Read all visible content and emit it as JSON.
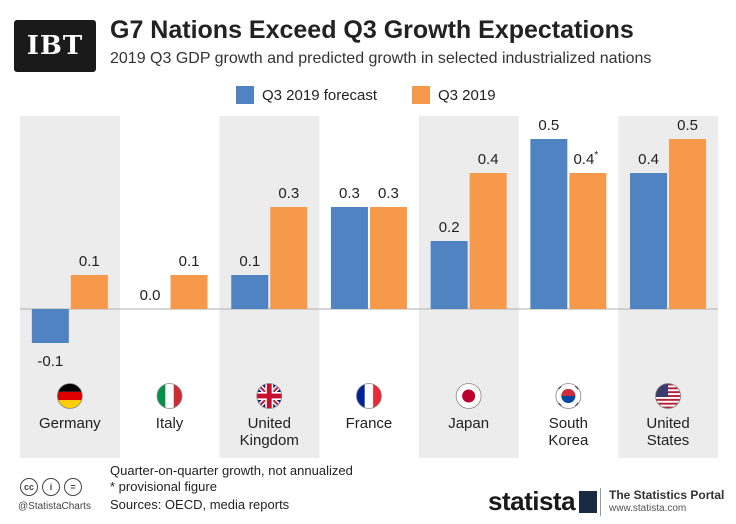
{
  "brand": {
    "logo_text": "IBT"
  },
  "header": {
    "title": "G7 Nations Exceed Q3 Growth Expectations",
    "subtitle": "2019 Q3 GDP growth and predicted growth in selected industrialized nations"
  },
  "legend": {
    "forecast_label": "Q3 2019 forecast",
    "actual_label": "Q3 2019"
  },
  "colors": {
    "forecast": "#5083c1",
    "actual": "#f7994a",
    "band": "#ececec",
    "baseline": "#bdbdbd"
  },
  "chart_data": {
    "type": "bar",
    "title": "G7 Nations Exceed Q3 Growth Expectations",
    "subtitle": "2019 Q3 GDP growth and predicted growth in selected industrialized nations",
    "xlabel": "",
    "ylabel": "",
    "ylim": [
      -0.15,
      0.55
    ],
    "grid": false,
    "legend_position": "top-center",
    "categories": [
      "Germany",
      "Italy",
      "United Kingdom",
      "France",
      "Japan",
      "South Korea",
      "United States"
    ],
    "category_lines": [
      [
        "Germany"
      ],
      [
        "Italy"
      ],
      [
        "United",
        "Kingdom"
      ],
      [
        "France"
      ],
      [
        "Japan"
      ],
      [
        "South",
        "Korea"
      ],
      [
        "United",
        "States"
      ]
    ],
    "flags": [
      "germany-flag",
      "italy-flag",
      "uk-flag",
      "france-flag",
      "japan-flag",
      "south-korea-flag",
      "usa-flag"
    ],
    "series": [
      {
        "name": "Q3 2019 forecast",
        "values": [
          -0.1,
          0.0,
          0.1,
          0.3,
          0.2,
          0.5,
          0.4
        ],
        "labels": [
          "-0.1",
          "0.0",
          "0.1",
          "0.3",
          "0.2",
          "0.5",
          "0.4"
        ]
      },
      {
        "name": "Q3 2019",
        "values": [
          0.1,
          0.1,
          0.3,
          0.3,
          0.4,
          0.4,
          0.5
        ],
        "labels": [
          "0.1",
          "0.1",
          "0.3",
          "0.3",
          "0.4",
          "0.4*",
          "0.5"
        ]
      }
    ]
  },
  "footer": {
    "note_1": "Quarter-on-quarter growth, not annualized",
    "note_2": "* provisional figure",
    "sources": "Sources: OECD, media reports",
    "handle": "@StatistaCharts",
    "statista": "statista",
    "portal": "The Statistics Portal",
    "portal_url": "www.statista.com"
  }
}
